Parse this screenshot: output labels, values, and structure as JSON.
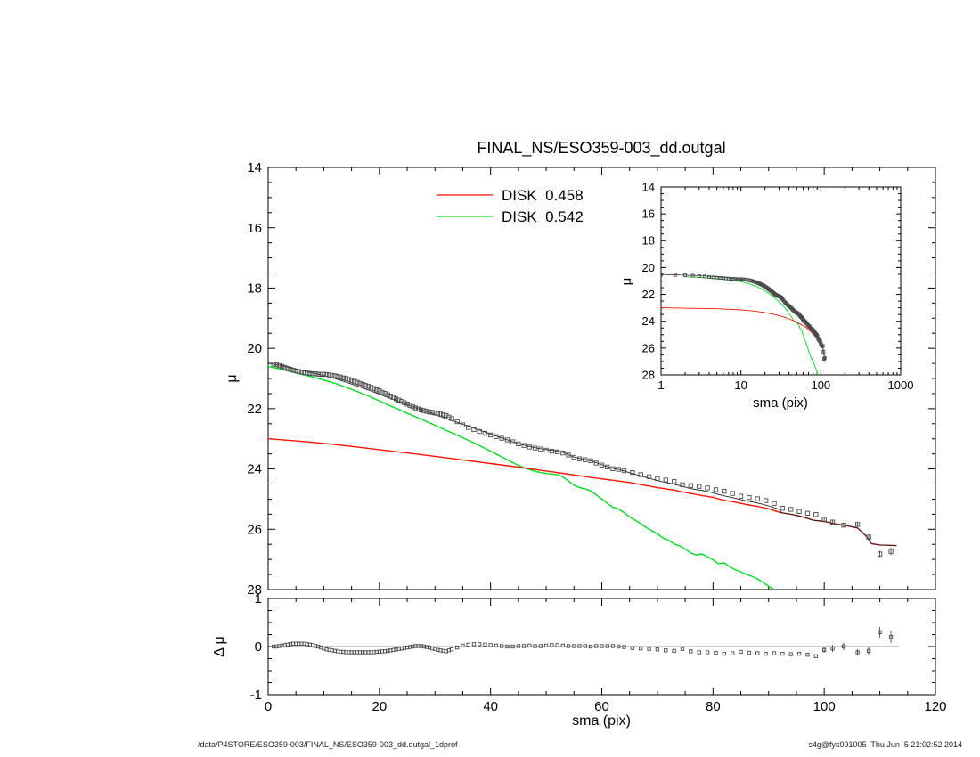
{
  "title": "FINAL_NS/ESO359-003_dd.outgal",
  "footer": {
    "left": "/data/P4STORE/ESO359-003/FINAL_NS/ESO359-003_dd.outgal_1dprof",
    "right": "s4g@fys091005  Thu Jun  5 21:02:52 2014"
  },
  "legend": {
    "items": [
      {
        "label": "DISK  0.458",
        "color": "#ff1200"
      },
      {
        "label": "DISK  0.542",
        "color": "#00df1c"
      }
    ]
  },
  "colors": {
    "axis": "#000000",
    "data_marker": "#4a4a4a",
    "total_model": "#222222",
    "zero_line": "#999999",
    "disk1": "#ff1200",
    "disk2": "#00df1c"
  },
  "chart_data": {
    "type": "line",
    "title": "FINAL_NS/ESO359-003_dd.outgal",
    "panels": {
      "main": {
        "xlim": [
          0,
          120
        ],
        "ylim": [
          14,
          28
        ],
        "y_axis_reversed": true,
        "xscale": "linear",
        "xlabel": "",
        "ylabel": "μ",
        "xticks": [
          0,
          20,
          40,
          60,
          80,
          100,
          120
        ],
        "yticks": [
          14,
          16,
          18,
          20,
          22,
          24,
          26,
          28
        ],
        "x_minor": 5,
        "y_minor": 0.5,
        "show_x_labels": false,
        "show_y_labels": true
      },
      "inset": {
        "xlim": [
          1,
          1000
        ],
        "ylim": [
          14,
          28
        ],
        "y_axis_reversed": true,
        "xscale": "log",
        "xlabel": "sma (pix)",
        "ylabel": "μ",
        "xticks": [
          1,
          10,
          100,
          1000
        ],
        "yticks": [
          14,
          16,
          18,
          20,
          22,
          24,
          26,
          28
        ],
        "y_minor": 0.5,
        "show_x_labels": true,
        "show_y_labels": true
      },
      "residual": {
        "xlim": [
          0,
          120
        ],
        "ylim": [
          -1,
          1
        ],
        "y_axis_reversed": false,
        "xscale": "linear",
        "xlabel": "sma (pix)",
        "ylabel": "Δ μ",
        "xticks": [
          0,
          20,
          40,
          60,
          80,
          100,
          120
        ],
        "yticks": [
          -1,
          0,
          1
        ],
        "x_minor": 5,
        "y_minor": 0.25,
        "zero_line": true,
        "show_x_labels": true,
        "show_y_labels": true
      }
    },
    "series": {
      "disk1": {
        "name": "DISK  0.458",
        "color": "#ff1200",
        "style": "line",
        "points": [
          [
            0,
            23.0
          ],
          [
            5,
            23.07
          ],
          [
            10,
            23.15
          ],
          [
            15,
            23.25
          ],
          [
            20,
            23.36
          ],
          [
            25,
            23.47
          ],
          [
            30,
            23.58
          ],
          [
            35,
            23.7
          ],
          [
            40,
            23.82
          ],
          [
            45,
            23.94
          ],
          [
            50,
            24.07
          ],
          [
            55,
            24.2
          ],
          [
            58,
            24.28
          ],
          [
            60,
            24.33
          ],
          [
            63,
            24.4
          ],
          [
            65,
            24.45
          ],
          [
            68,
            24.55
          ],
          [
            70,
            24.62
          ],
          [
            73,
            24.7
          ],
          [
            75,
            24.78
          ],
          [
            78,
            24.88
          ],
          [
            80,
            24.94
          ],
          [
            82,
            25.04
          ],
          [
            84,
            25.1
          ],
          [
            86,
            25.18
          ],
          [
            88,
            25.24
          ],
          [
            90,
            25.32
          ],
          [
            92,
            25.44
          ],
          [
            94,
            25.5
          ],
          [
            96,
            25.58
          ],
          [
            98,
            25.7
          ],
          [
            100,
            25.74
          ],
          [
            102,
            25.82
          ],
          [
            104,
            25.88
          ],
          [
            106,
            25.96
          ],
          [
            107.5,
            26.22
          ],
          [
            108.5,
            26.48
          ],
          [
            110,
            26.52
          ],
          [
            113,
            26.54
          ]
        ]
      },
      "disk2": {
        "name": "DISK  0.542",
        "color": "#00df1c",
        "style": "line",
        "points": [
          [
            0,
            20.6
          ],
          [
            2,
            20.68
          ],
          [
            4,
            20.77
          ],
          [
            6,
            20.86
          ],
          [
            8,
            20.95
          ],
          [
            10,
            21.05
          ],
          [
            12,
            21.16
          ],
          [
            14,
            21.29
          ],
          [
            16,
            21.43
          ],
          [
            18,
            21.58
          ],
          [
            20,
            21.74
          ],
          [
            22,
            21.91
          ],
          [
            24,
            22.07
          ],
          [
            26,
            22.23
          ],
          [
            28,
            22.39
          ],
          [
            30,
            22.55
          ],
          [
            32,
            22.72
          ],
          [
            34,
            22.88
          ],
          [
            36,
            23.05
          ],
          [
            38,
            23.22
          ],
          [
            40,
            23.41
          ],
          [
            42,
            23.6
          ],
          [
            44,
            23.79
          ],
          [
            45,
            23.88
          ],
          [
            46,
            23.96
          ],
          [
            47,
            24.02
          ],
          [
            48,
            24.08
          ],
          [
            49,
            24.12
          ],
          [
            50,
            24.15
          ],
          [
            51,
            24.17
          ],
          [
            52,
            24.19
          ],
          [
            53,
            24.26
          ],
          [
            54,
            24.4
          ],
          [
            55,
            24.54
          ],
          [
            56,
            24.62
          ],
          [
            57,
            24.66
          ],
          [
            58,
            24.73
          ],
          [
            59,
            24.86
          ],
          [
            60,
            25.0
          ],
          [
            61,
            25.14
          ],
          [
            62,
            25.27
          ],
          [
            63,
            25.32
          ],
          [
            64,
            25.45
          ],
          [
            65,
            25.59
          ],
          [
            66,
            25.7
          ],
          [
            67,
            25.81
          ],
          [
            68,
            25.94
          ],
          [
            69,
            26.05
          ],
          [
            70,
            26.15
          ],
          [
            71,
            26.29
          ],
          [
            72,
            26.36
          ],
          [
            73,
            26.49
          ],
          [
            74,
            26.55
          ],
          [
            75,
            26.65
          ],
          [
            76,
            26.79
          ],
          [
            77,
            26.85
          ],
          [
            78,
            26.82
          ],
          [
            79,
            26.91
          ],
          [
            80,
            27.01
          ],
          [
            81,
            27.14
          ],
          [
            82,
            27.11
          ],
          [
            83,
            27.24
          ],
          [
            84,
            27.34
          ],
          [
            85,
            27.41
          ],
          [
            86,
            27.5
          ],
          [
            87,
            27.56
          ],
          [
            88,
            27.65
          ],
          [
            89,
            27.76
          ],
          [
            90,
            27.89
          ],
          [
            91,
            28.0
          ],
          [
            92,
            28.12
          ]
        ]
      },
      "total_model": {
        "color": "#222222",
        "style": "line",
        "derived": "flux sum of disk1 + disk2"
      },
      "observed": {
        "color": "#4a4a4a",
        "marker": "open-square",
        "derived": "total_model + residual"
      },
      "residual": {
        "color": "#4a4a4a",
        "marker": "open-square",
        "note": "points are [sma, delta_mu, optional_error]",
        "points": [
          [
            1,
            0
          ],
          [
            1.5,
            0
          ],
          [
            2,
            0.01
          ],
          [
            2.5,
            0.02
          ],
          [
            3,
            0.03
          ],
          [
            3.5,
            0.04
          ],
          [
            4,
            0.05
          ],
          [
            4.5,
            0.06
          ],
          [
            5,
            0.06
          ],
          [
            5.5,
            0.06
          ],
          [
            6,
            0.06
          ],
          [
            6.5,
            0.06
          ],
          [
            7,
            0.05
          ],
          [
            7.5,
            0.04
          ],
          [
            8,
            0.03
          ],
          [
            8.5,
            0.01
          ],
          [
            9,
            0
          ],
          [
            9.5,
            -0.02
          ],
          [
            10,
            -0.04
          ],
          [
            10.5,
            -0.06
          ],
          [
            11,
            -0.07
          ],
          [
            11.5,
            -0.08
          ],
          [
            12,
            -0.09
          ],
          [
            12.5,
            -0.1
          ],
          [
            13,
            -0.11
          ],
          [
            13.5,
            -0.11
          ],
          [
            14,
            -0.12
          ],
          [
            14.5,
            -0.12
          ],
          [
            15,
            -0.12
          ],
          [
            15.5,
            -0.12
          ],
          [
            16,
            -0.12
          ],
          [
            16.5,
            -0.12
          ],
          [
            17,
            -0.12
          ],
          [
            17.5,
            -0.12
          ],
          [
            18,
            -0.12
          ],
          [
            18.5,
            -0.12
          ],
          [
            19,
            -0.12
          ],
          [
            19.5,
            -0.11
          ],
          [
            20,
            -0.11
          ],
          [
            20.5,
            -0.1
          ],
          [
            21,
            -0.1
          ],
          [
            21.5,
            -0.09
          ],
          [
            22,
            -0.08
          ],
          [
            22.5,
            -0.07
          ],
          [
            23,
            -0.06
          ],
          [
            23.5,
            -0.05
          ],
          [
            24,
            -0.04
          ],
          [
            24.5,
            -0.03
          ],
          [
            25,
            -0.02
          ],
          [
            25.5,
            -0.01
          ],
          [
            26,
            0
          ],
          [
            26.5,
            0.01
          ],
          [
            27,
            0.01
          ],
          [
            27.5,
            0.01
          ],
          [
            28,
            0
          ],
          [
            28.5,
            -0.01
          ],
          [
            29,
            -0.02
          ],
          [
            29.5,
            -0.04
          ],
          [
            30,
            -0.05
          ],
          [
            30.5,
            -0.07
          ],
          [
            31,
            -0.08
          ],
          [
            31.5,
            -0.09
          ],
          [
            32,
            -0.1
          ],
          [
            32.5,
            -0.08
          ],
          [
            33,
            -0.06
          ],
          [
            34,
            -0.02
          ],
          [
            35,
            0.02
          ],
          [
            36,
            0.04
          ],
          [
            37,
            0.05
          ],
          [
            38,
            0.05
          ],
          [
            39,
            0.04
          ],
          [
            40,
            0.03
          ],
          [
            41,
            0.02
          ],
          [
            42,
            0.01
          ],
          [
            43,
            0
          ],
          [
            44,
            0
          ],
          [
            45,
            0.01
          ],
          [
            46,
            0.01
          ],
          [
            47,
            0.02
          ],
          [
            48,
            0.01
          ],
          [
            49,
            0.01
          ],
          [
            50,
            0.02
          ],
          [
            51,
            0.03
          ],
          [
            52,
            0.03
          ],
          [
            53,
            0.02
          ],
          [
            54,
            0.01
          ],
          [
            55,
            0.01
          ],
          [
            56,
            0.01
          ],
          [
            57,
            0.01
          ],
          [
            58,
            0
          ],
          [
            59,
            0.01
          ],
          [
            60,
            0.01
          ],
          [
            61,
            0.01
          ],
          [
            62,
            0.01
          ],
          [
            63,
            0
          ],
          [
            64,
            -0.01
          ],
          [
            65.5,
            -0.03
          ],
          [
            67,
            -0.04
          ],
          [
            68.5,
            -0.05
          ],
          [
            70,
            -0.06
          ],
          [
            71.5,
            -0.08
          ],
          [
            73,
            -0.09
          ],
          [
            74.5,
            -0.05
          ],
          [
            76,
            -0.1
          ],
          [
            77.5,
            -0.12
          ],
          [
            79,
            -0.12
          ],
          [
            80.5,
            -0.13
          ],
          [
            82,
            -0.15
          ],
          [
            83.5,
            -0.14
          ],
          [
            85,
            -0.11
          ],
          [
            86.5,
            -0.13
          ],
          [
            88,
            -0.14
          ],
          [
            89.5,
            -0.15
          ],
          [
            91,
            -0.14
          ],
          [
            92.5,
            -0.15
          ],
          [
            94,
            -0.16
          ],
          [
            95.5,
            -0.15
          ],
          [
            97,
            -0.17
          ],
          [
            98.5,
            -0.2
          ],
          [
            100,
            -0.07,
            0.06
          ],
          [
            101.5,
            -0.04,
            0.07
          ],
          [
            103.5,
            0,
            0.08
          ],
          [
            106,
            -0.12,
            0.07
          ],
          [
            108,
            -0.09,
            0.09
          ],
          [
            110,
            0.3,
            0.11
          ],
          [
            112,
            0.2,
            0.13
          ]
        ]
      }
    }
  }
}
